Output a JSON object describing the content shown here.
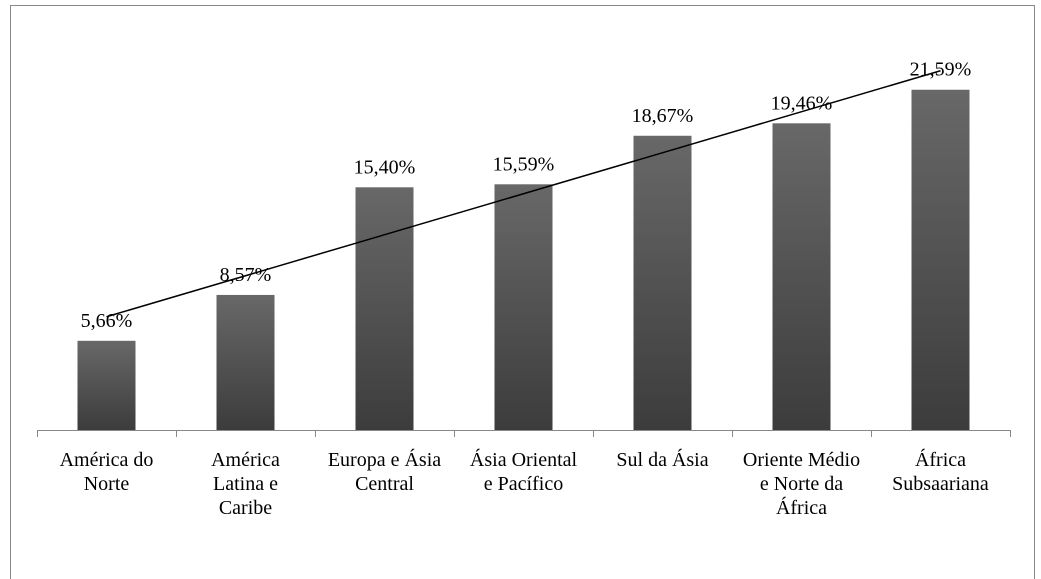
{
  "chart_data": {
    "type": "bar",
    "categories": [
      "América do Norte",
      "América Latina e Caribe",
      "Europa e Ásia Central",
      "Ásia Oriental e Pacífico",
      "Sul da Ásia",
      "Oriente Médio e Norte da África",
      "África Subsaariana"
    ],
    "values": [
      5.66,
      8.57,
      15.4,
      15.59,
      18.67,
      19.46,
      21.59
    ],
    "value_labels": [
      "5,66%",
      "8,57%",
      "15,40%",
      "15,59%",
      "18,67%",
      "19,46%",
      "21,59%"
    ],
    "color": "#555555",
    "ylim": [
      0,
      25
    ],
    "trendline": "linear"
  }
}
